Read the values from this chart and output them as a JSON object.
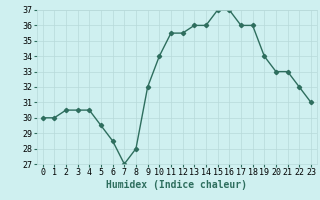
{
  "x": [
    0,
    1,
    2,
    3,
    4,
    5,
    6,
    7,
    8,
    9,
    10,
    11,
    12,
    13,
    14,
    15,
    16,
    17,
    18,
    19,
    20,
    21,
    22,
    23
  ],
  "y": [
    30,
    30,
    30.5,
    30.5,
    30.5,
    29.5,
    28.5,
    27,
    28,
    32,
    34,
    35.5,
    35.5,
    36,
    36,
    37,
    37,
    36,
    36,
    34,
    33,
    33,
    32,
    31
  ],
  "xlabel": "Humidex (Indice chaleur)",
  "xlim": [
    -0.5,
    23.5
  ],
  "ylim": [
    27,
    37
  ],
  "yticks": [
    27,
    28,
    29,
    30,
    31,
    32,
    33,
    34,
    35,
    36,
    37
  ],
  "xticks": [
    0,
    1,
    2,
    3,
    4,
    5,
    6,
    7,
    8,
    9,
    10,
    11,
    12,
    13,
    14,
    15,
    16,
    17,
    18,
    19,
    20,
    21,
    22,
    23
  ],
  "line_color": "#2e6e5e",
  "marker": "D",
  "marker_size": 2.2,
  "bg_color": "#cff0f0",
  "grid_color": "#b8dada",
  "tick_fontsize": 6.0,
  "xlabel_fontsize": 7.0,
  "line_width": 1.0
}
